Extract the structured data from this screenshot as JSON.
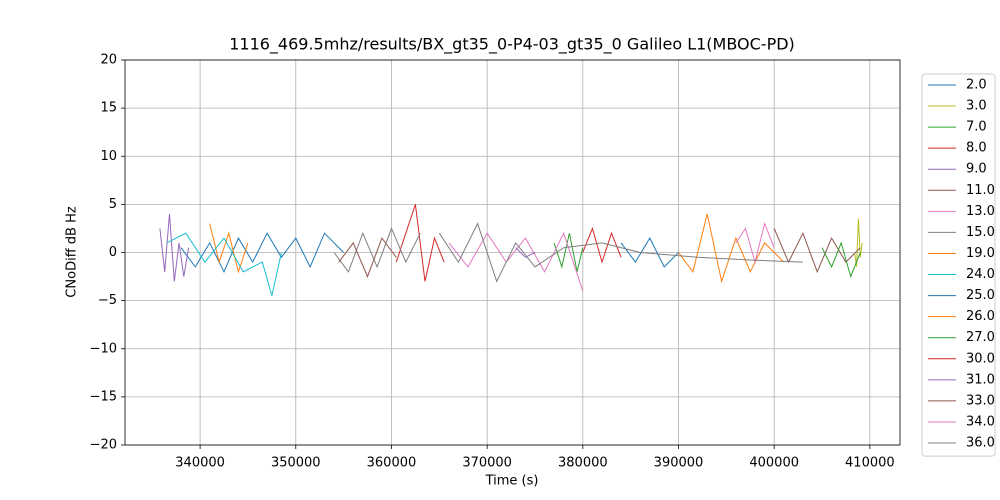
{
  "chart_data": {
    "type": "line",
    "title": "1116_469.5mhz/results/BX_gt35_0-P4-03_gt35_0 Galileo L1(MBOC-PD)",
    "x_label": "Time (s)",
    "y_label": "CNoDiff dB Hz",
    "xlim": [
      332150,
      413150
    ],
    "ylim": [
      -20,
      20
    ],
    "xticks": [
      340000,
      350000,
      360000,
      370000,
      380000,
      390000,
      400000,
      410000
    ],
    "yticks": [
      {
        "value": -20,
        "label": "−20"
      },
      {
        "value": -15,
        "label": "−15"
      },
      {
        "value": -10,
        "label": "−10"
      },
      {
        "value": -5,
        "label": "−5"
      },
      0,
      5,
      10,
      15,
      20
    ],
    "grid": true,
    "legend": "outside-right",
    "series": [
      {
        "name": "2.0",
        "color": "#1f77b4",
        "x": [
          338000,
          339500,
          341000,
          342500,
          344000,
          345500,
          347000,
          348500,
          350000,
          351500,
          353000,
          355000
        ],
        "values": [
          0.5,
          -1.5,
          1,
          -2,
          1.5,
          -1,
          2,
          -0.5,
          1.5,
          -1.5,
          2,
          0
        ]
      },
      {
        "name": "3.0",
        "color": "#bcbd22",
        "x": [
          408400,
          408600,
          408800,
          409000,
          409200
        ],
        "values": [
          0,
          -1.5,
          3.5,
          -0.5,
          1
        ]
      },
      {
        "name": "7.0",
        "color": "#2ca02c",
        "x": [
          377000,
          377800,
          378600,
          379400,
          380000
        ],
        "values": [
          1,
          -1.5,
          2,
          -2,
          0.5
        ]
      },
      {
        "name": "8.0",
        "color": "#d62728",
        "x": [
          360500,
          361500,
          362500,
          363500,
          364500,
          365500
        ],
        "values": [
          -1,
          2,
          5,
          -3,
          1.5,
          -1
        ]
      },
      {
        "name": "9.0",
        "color": "#9467bd",
        "x": [
          335800,
          336300,
          336800,
          337300,
          337800,
          338300,
          338800
        ],
        "values": [
          2.5,
          -2,
          4,
          -3,
          1,
          -2.5,
          0.5
        ]
      },
      {
        "name": "11.0",
        "color": "#8c564b",
        "x": [
          400000,
          401500,
          403000,
          404500,
          406000,
          407500,
          409000
        ],
        "values": [
          2.5,
          -1,
          2,
          -2,
          1.5,
          -1,
          0.5
        ]
      },
      {
        "name": "13.0",
        "color": "#e377c2",
        "x": [
          366000,
          368000,
          370000,
          372000,
          374000,
          376000,
          378000,
          380000
        ],
        "values": [
          1,
          -1.5,
          2,
          -1,
          1.5,
          -2,
          2,
          -4
        ]
      },
      {
        "name": "15.0",
        "color": "#7f7f7f",
        "x": [
          354000,
          355500,
          357000,
          358500,
          360000,
          361500,
          363000
        ],
        "values": [
          0,
          -2,
          2,
          -1.5,
          2.5,
          -1,
          2
        ]
      },
      {
        "name": "19.0",
        "color": "#ff7f0e",
        "x": [
          341000,
          342000,
          343000,
          344000,
          345000
        ],
        "values": [
          3,
          -1,
          2,
          -2,
          1
        ]
      },
      {
        "name": "24.0",
        "color": "#17becf",
        "x": [
          336500,
          338500,
          340500,
          342500,
          344500,
          346500,
          347500,
          348500
        ],
        "values": [
          1,
          2,
          -1,
          1.5,
          -2,
          -1,
          -4.5,
          0
        ]
      },
      {
        "name": "25.0",
        "color": "#1f77b4",
        "x": [
          384000,
          385500,
          387000,
          388500,
          390000
        ],
        "values": [
          1,
          -1,
          1.5,
          -1.5,
          0
        ]
      },
      {
        "name": "26.0",
        "color": "#ff7f0e",
        "x": [
          390000,
          391500,
          393000,
          394500,
          396000,
          397500,
          399000,
          401000
        ],
        "values": [
          0,
          -2,
          4,
          -3,
          1.5,
          -2,
          1,
          -1
        ]
      },
      {
        "name": "27.0",
        "color": "#2ca02c",
        "x": [
          405000,
          406000,
          407000,
          408000,
          409000
        ],
        "values": [
          0.5,
          -1.5,
          1,
          -2.5,
          0
        ]
      },
      {
        "name": "30.0",
        "color": "#d62728",
        "x": [
          380000,
          381000,
          382000,
          383000,
          384000
        ],
        "values": [
          0,
          2.5,
          -1,
          2,
          -0.5
        ]
      },
      {
        "name": "31.0",
        "color": "#9467bd",
        "x": [
          373000,
          374000,
          375000
        ],
        "values": [
          0.5,
          -0.5,
          0
        ]
      },
      {
        "name": "33.0",
        "color": "#8c564b",
        "x": [
          354500,
          356000,
          357500,
          359000,
          360500
        ],
        "values": [
          -1,
          1,
          -2.5,
          1.5,
          -0.5
        ]
      },
      {
        "name": "34.0",
        "color": "#e377c2",
        "x": [
          396000,
          397000,
          398000,
          399000,
          400000
        ],
        "values": [
          1,
          2.5,
          -1,
          3,
          0.5
        ]
      },
      {
        "name": "36.0",
        "color": "#7f7f7f",
        "x": [
          365000,
          367000,
          369000,
          371000,
          373000,
          375000,
          378000,
          382000,
          386000,
          392000,
          398000,
          403000
        ],
        "values": [
          2,
          -1,
          3,
          -3,
          1,
          -1.5,
          0.5,
          1,
          0,
          -0.5,
          -0.8,
          -1
        ]
      }
    ]
  }
}
